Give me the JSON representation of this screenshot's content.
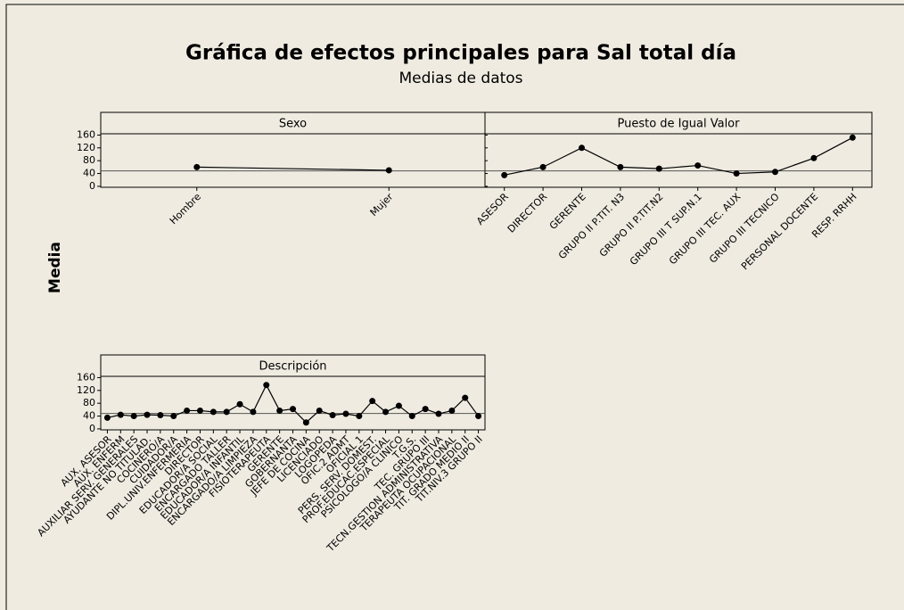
{
  "title": "Gráfica de efectos principales para Sal total día",
  "subtitle": "Medias de datos",
  "ylabel": "Media",
  "chart_data": [
    {
      "type": "line",
      "title": "Sexo",
      "categories": [
        "Hombre",
        "Mujer"
      ],
      "values": [
        60,
        50
      ],
      "ylim": [
        -3,
        164
      ],
      "yticks": [
        0,
        40,
        80,
        120,
        160
      ],
      "reference_line": 48,
      "color": "#000000"
    },
    {
      "type": "line",
      "title": "Puesto de Igual Valor",
      "categories": [
        "ASESOR",
        "DIRECTOR",
        "GERENTE",
        "GRUPO II P.TIT. N3",
        "GRUPO II P.TIT.N2",
        "GRUPO III T SUP.N.1",
        "GRUPO III TEC. AUX",
        "GRUPO III TECNICO",
        "PERSONAL DOCENTE",
        "RESP. RRHH"
      ],
      "values": [
        35,
        60,
        120,
        60,
        55,
        65,
        40,
        45,
        88,
        152
      ],
      "ylim": [
        -3,
        164
      ],
      "yticks": [
        0,
        40,
        80,
        120,
        160
      ],
      "reference_line": 48,
      "color": "#000000"
    },
    {
      "type": "line",
      "title": "Descripción",
      "categories": [
        "AUX. ASESOR",
        "AUX. ENFERM",
        "AUXILIAR SERV. GENERALES",
        "AYUDANTE NO TITULAD.",
        "COCINERO/A",
        "CUIDADOR/A",
        "DIPL.UNIV.ENFERMERIA",
        "DIRECTOR",
        "EDUCADOR/A SOCIAL",
        "ENCARGADO TALLER",
        "EDUCADOR/A INFANTIL",
        "ENCARGADO/A LIMPIEZA",
        "FISIOTERAPEUTA",
        "GERENTE",
        "GOBERNANTA",
        "JEFE DE COCINA",
        "LICENCIADO",
        "LOGOPEDA",
        "OFIC.2 ADMT",
        "OFICIAL 1",
        "PERS. SERV. DOMEST.",
        "PROF.EDUCAC.ESPECIAL",
        "PSICOLOGO/A CLINICO",
        "T.G.S.",
        "TEC. GRUPO III",
        "TECN.GESTION ADMINISTRATIVA",
        "TERAPEUTA OCUPACIONAL",
        "TIT. GRADO MEDIO II",
        "TIT.NIV.3 GRUPO II"
      ],
      "values": [
        35,
        44,
        40,
        44,
        43,
        40,
        57,
        57,
        53,
        53,
        77,
        53,
        137,
        57,
        62,
        20,
        57,
        43,
        47,
        40,
        87,
        53,
        72,
        40,
        62,
        47,
        57,
        97,
        40
      ],
      "ylim": [
        -3,
        164
      ],
      "yticks": [
        0,
        40,
        80,
        120,
        160
      ],
      "reference_line": 48,
      "color": "#000000"
    }
  ]
}
